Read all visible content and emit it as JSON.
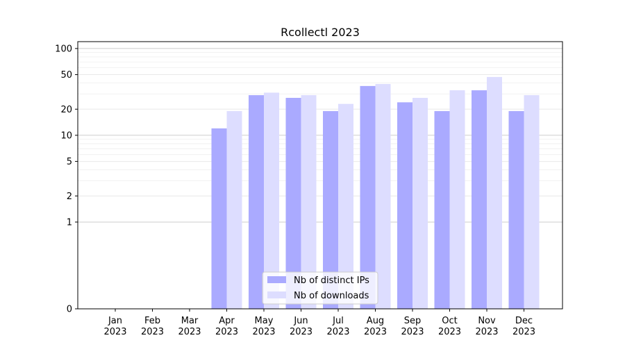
{
  "chart_data": {
    "type": "bar",
    "title": "Rcollectl 2023",
    "xlabel": "",
    "ylabel": "",
    "yscale": "symlog",
    "ylim": [
      0,
      120
    ],
    "yticks": [
      0,
      1,
      2,
      5,
      10,
      20,
      50,
      100
    ],
    "grid": true,
    "legend_position": "lower-center",
    "categories": [
      "Jan\n2023",
      "Feb\n2023",
      "Mar\n2023",
      "Apr\n2023",
      "May\n2023",
      "Jun\n2023",
      "Jul\n2023",
      "Aug\n2023",
      "Sep\n2023",
      "Oct\n2023",
      "Nov\n2023",
      "Dec\n2023"
    ],
    "series": [
      {
        "name": "Nb of distinct IPs",
        "color": "#aaaaff",
        "values": [
          0,
          0,
          0,
          12,
          29,
          27,
          19,
          37,
          24,
          19,
          33,
          19
        ]
      },
      {
        "name": "Nb of downloads",
        "color": "#ddddff",
        "values": [
          0,
          0,
          0,
          19,
          31,
          29,
          23,
          39,
          27,
          33,
          47,
          29
        ]
      }
    ]
  }
}
